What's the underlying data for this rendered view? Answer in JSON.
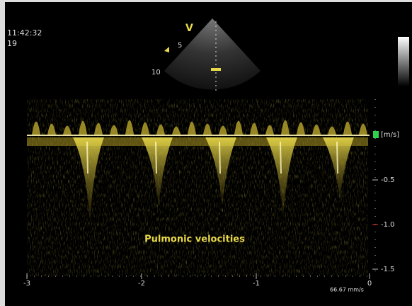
{
  "header": {
    "time": "11:42:32",
    "frame": "19"
  },
  "probe": {
    "marker": "V",
    "depth_labels": [
      "5",
      "10"
    ]
  },
  "doppler": {
    "unit": "[m/s]",
    "velocity_labels": [
      "-0.5",
      "-1.0",
      "-1.5"
    ],
    "time_labels": [
      "-3",
      "-2",
      "-1",
      "0"
    ],
    "sweep_speed": "66.67 mm/s",
    "annotation": "Pulmonic velocities"
  }
}
